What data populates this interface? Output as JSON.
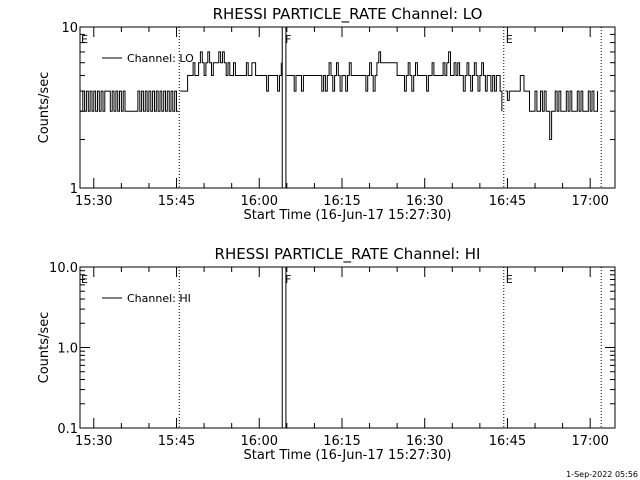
{
  "chart_data": [
    {
      "type": "line",
      "title": "RHESSI PARTICLE_RATE Channel: LO",
      "xlabel": "Start Time (16-Jun-17 15:27:30)",
      "ylabel": "Counts/sec",
      "yscale": "log",
      "ylim": [
        1,
        10
      ],
      "xlim": [
        "15:27:30",
        "17:04:30"
      ],
      "xticks": [
        "15:30",
        "15:45",
        "16:00",
        "16:15",
        "16:30",
        "16:45",
        "17:00"
      ],
      "yticks": [
        "1",
        "10"
      ],
      "legend": "Channel: LO",
      "flags": [
        {
          "label": "E",
          "time": "15:27:30"
        },
        {
          "label": "F",
          "time": "16:04:30"
        },
        {
          "label": "E",
          "time": "16:44:30"
        }
      ],
      "gaps": [
        {
          "time": "15:45:30",
          "style": "dotted"
        },
        {
          "time": "16:04:10",
          "style": "solid"
        },
        {
          "time": "16:04:50",
          "style": "solid"
        },
        {
          "time": "16:44:20",
          "style": "dotted"
        },
        {
          "time": "17:02:00",
          "style": "dotted"
        }
      ],
      "series": [
        {
          "name": "Channel: LO",
          "segments": [
            {
              "x": [
                "15:27:30",
                "15:28:00",
                "15:28:20",
                "15:28:40",
                "15:29:00",
                "15:29:20",
                "15:29:40",
                "15:30:00",
                "15:30:20",
                "15:30:40",
                "15:31:00",
                "15:31:20",
                "15:31:40",
                "15:32:00",
                "15:33:00",
                "15:33:20",
                "15:33:40",
                "15:34:00",
                "15:34:20",
                "15:34:40",
                "15:35:00",
                "15:35:20",
                "15:35:40",
                "15:36:00",
                "15:38:00",
                "15:38:20",
                "15:38:40",
                "15:39:00",
                "15:39:20",
                "15:39:40",
                "15:40:00",
                "15:40:20",
                "15:40:40",
                "15:41:00",
                "15:41:20",
                "15:41:40",
                "15:42:00",
                "15:42:20",
                "15:42:40",
                "15:43:00",
                "15:43:20",
                "15:43:40",
                "15:44:00",
                "15:44:20",
                "15:44:40",
                "15:45:00",
                "15:45:20"
              ],
              "y": [
                3,
                4,
                3,
                4,
                3,
                4,
                3,
                4,
                3,
                4,
                3,
                4,
                3,
                4,
                3,
                4,
                3,
                4,
                3,
                4,
                3,
                4,
                3,
                3,
                4,
                3,
                4,
                3,
                4,
                3,
                4,
                3,
                4,
                3,
                4,
                3,
                4,
                3,
                4,
                3,
                4,
                3,
                4,
                3,
                4,
                3,
                3
              ]
            },
            {
              "x": [
                "15:45:40",
                "15:46:00",
                "15:47:00",
                "15:47:20",
                "15:48:00",
                "15:48:20",
                "15:49:00",
                "15:49:20",
                "15:49:40",
                "15:50:00",
                "15:50:20",
                "15:50:40",
                "15:51:00",
                "15:51:20",
                "15:51:40",
                "15:52:00",
                "15:52:40",
                "15:53:00",
                "15:53:20",
                "15:53:40",
                "15:54:00",
                "15:54:20",
                "15:54:40",
                "15:55:00",
                "15:55:20",
                "15:55:40",
                "15:56:00",
                "15:56:40",
                "15:57:00",
                "15:57:20",
                "15:57:40",
                "15:58:00",
                "15:58:20",
                "15:58:40",
                "15:59:00",
                "15:59:20",
                "15:59:40",
                "16:00:00",
                "16:00:20",
                "16:01:00",
                "16:01:20",
                "16:01:40",
                "16:02:00",
                "16:02:20",
                "16:02:40",
                "16:03:00",
                "16:03:20",
                "16:03:40",
                "16:04:00"
              ],
              "y": [
                4,
                4,
                5,
                5,
                6,
                5,
                6,
                7,
                6,
                5,
                6,
                7,
                6,
                5,
                6,
                6,
                7,
                6,
                7,
                6,
                5,
                6,
                5,
                5,
                6,
                5,
                5,
                5,
                5,
                5,
                6,
                5,
                5,
                6,
                6,
                5,
                5,
                5,
                5,
                5,
                4,
                5,
                5,
                5,
                5,
                5,
                4,
                5,
                6
              ]
            },
            {
              "x": [
                "16:05:00",
                "16:06:00",
                "16:06:20",
                "16:06:40",
                "16:07:00",
                "16:07:20",
                "16:07:40",
                "16:08:00",
                "16:08:20",
                "16:08:40",
                "16:09:00",
                "16:10:00",
                "16:11:00",
                "16:11:20",
                "16:11:40",
                "16:12:00",
                "16:12:20",
                "16:12:40",
                "16:13:00",
                "16:13:20",
                "16:13:40",
                "16:14:00",
                "16:14:20",
                "16:14:40",
                "16:15:00",
                "16:15:20",
                "16:15:40",
                "16:16:00",
                "16:16:20",
                "16:16:40",
                "16:17:00",
                "16:18:00",
                "16:19:00",
                "16:19:20",
                "16:19:40",
                "16:20:00",
                "16:20:20",
                "16:20:40",
                "16:21:00",
                "16:21:20",
                "16:21:40",
                "16:22:00",
                "16:23:00",
                "16:24:00",
                "16:25:00",
                "16:26:00",
                "16:26:20",
                "16:26:40",
                "16:27:00",
                "16:27:20",
                "16:27:40",
                "16:28:00",
                "16:28:20",
                "16:28:40",
                "16:29:00",
                "16:29:20",
                "16:30:00",
                "16:30:20",
                "16:30:40",
                "16:31:00",
                "16:31:20",
                "16:31:40",
                "16:32:00",
                "16:32:20",
                "16:32:40",
                "16:33:00",
                "16:33:20",
                "16:33:40",
                "16:34:00",
                "16:34:20",
                "16:34:40",
                "16:35:00",
                "16:35:20",
                "16:35:40",
                "16:36:00",
                "16:36:20",
                "16:36:40",
                "16:37:00",
                "16:37:20",
                "16:37:40",
                "16:38:00",
                "16:38:20",
                "16:38:40",
                "16:39:00",
                "16:39:20",
                "16:39:40",
                "16:40:00",
                "16:40:20",
                "16:40:40",
                "16:41:00",
                "16:41:20",
                "16:41:40",
                "16:42:00",
                "16:42:20",
                "16:42:40",
                "16:43:00",
                "16:43:20",
                "16:43:40",
                "16:44:00"
              ],
              "y": [
                5,
                5,
                4,
                5,
                5,
                5,
                4,
                5,
                5,
                5,
                5,
                5,
                5,
                4,
                5,
                4,
                5,
                6,
                5,
                4,
                5,
                6,
                5,
                4,
                5,
                5,
                4,
                5,
                6,
                5,
                5,
                5,
                5,
                4,
                5,
                6,
                5,
                4,
                5,
                6,
                7,
                6,
                6,
                6,
                5,
                5,
                4,
                5,
                6,
                5,
                4,
                5,
                6,
                5,
                5,
                5,
                5,
                4,
                5,
                5,
                6,
                5,
                5,
                5,
                5,
                5,
                6,
                5,
                6,
                7,
                5,
                5,
                6,
                5,
                6,
                5,
                5,
                4,
                5,
                6,
                5,
                4,
                5,
                6,
                5,
                4,
                5,
                6,
                5,
                4,
                5,
                5,
                4,
                5,
                4,
                5,
                5,
                4,
                3
              ]
            },
            {
              "x": [
                "16:44:40",
                "16:45:00",
                "16:45:20",
                "16:45:40",
                "16:46:00",
                "16:47:00",
                "16:47:20",
                "16:48:00",
                "16:48:20",
                "16:48:40",
                "16:49:00",
                "16:49:20",
                "16:49:40",
                "16:50:00",
                "16:50:20",
                "16:50:40",
                "16:51:00",
                "16:51:20",
                "16:51:40",
                "16:52:00",
                "16:52:20",
                "16:52:40",
                "16:53:00",
                "16:53:20",
                "16:53:40",
                "16:54:00",
                "16:54:20",
                "16:54:40",
                "16:55:00",
                "16:55:20",
                "16:55:40",
                "16:56:00",
                "16:56:20",
                "16:56:40",
                "16:57:00",
                "16:57:20",
                "16:57:40",
                "16:58:00",
                "16:58:20",
                "16:58:40",
                "16:59:00",
                "16:59:20",
                "16:59:40",
                "17:00:00",
                "17:00:20",
                "17:00:40",
                "17:01:00",
                "17:01:20"
              ],
              "y": [
                4,
                3.5,
                4,
                4,
                4,
                4,
                5,
                4,
                4,
                4,
                3,
                3,
                3,
                4,
                3,
                3,
                4,
                3,
                4,
                3,
                3,
                2,
                3,
                3,
                4,
                3,
                4,
                3,
                3,
                3,
                4,
                3,
                4,
                3,
                3,
                3,
                4,
                3,
                4,
                3,
                3,
                3,
                4,
                3,
                4,
                3,
                3,
                4
              ]
            }
          ]
        }
      ]
    },
    {
      "type": "line",
      "title": "RHESSI PARTICLE_RATE Channel: HI",
      "xlabel": "Start Time (16-Jun-17 15:27:30)",
      "ylabel": "Counts/sec",
      "yscale": "log",
      "ylim": [
        0.1,
        10
      ],
      "xlim": [
        "15:27:30",
        "17:04:30"
      ],
      "xticks": [
        "15:30",
        "15:45",
        "16:00",
        "16:15",
        "16:30",
        "16:45",
        "17:00"
      ],
      "yticks": [
        "0.1",
        "1.0",
        "10.0"
      ],
      "legend": "Channel: HI",
      "flags": [
        {
          "label": "E",
          "time": "15:27:30"
        },
        {
          "label": "F",
          "time": "16:04:30"
        },
        {
          "label": "E",
          "time": "16:44:30"
        }
      ],
      "gaps": [
        {
          "time": "15:45:30",
          "style": "dotted"
        },
        {
          "time": "16:04:10",
          "style": "solid"
        },
        {
          "time": "16:04:50",
          "style": "solid"
        },
        {
          "time": "16:44:20",
          "style": "dotted"
        },
        {
          "time": "17:02:00",
          "style": "dotted"
        }
      ],
      "series": [
        {
          "name": "Channel: HI",
          "segments": []
        }
      ]
    }
  ],
  "footer": {
    "timestamp": "1-Sep-2022 05:56"
  }
}
